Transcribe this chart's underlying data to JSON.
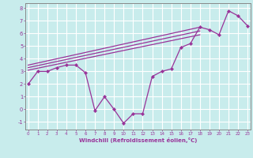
{
  "title": "",
  "xlabel": "Windchill (Refroidissement éolien,°C)",
  "ylabel": "",
  "bg_color": "#c8ecec",
  "grid_color": "#ffffff",
  "line_color": "#993399",
  "marker_color": "#993399",
  "axis_label_color": "#660066",
  "xlim": [
    -0.3,
    23.3
  ],
  "ylim": [
    -1.6,
    8.4
  ],
  "xticks": [
    0,
    1,
    2,
    3,
    4,
    5,
    6,
    7,
    8,
    9,
    10,
    11,
    12,
    13,
    14,
    15,
    16,
    17,
    18,
    19,
    20,
    21,
    22,
    23
  ],
  "yticks": [
    -1,
    0,
    1,
    2,
    3,
    4,
    5,
    6,
    7,
    8
  ],
  "series_main": [
    [
      0,
      2
    ],
    [
      1,
      3
    ],
    [
      2,
      3
    ],
    [
      3,
      3.3
    ],
    [
      4,
      3.5
    ],
    [
      5,
      3.5
    ],
    [
      6,
      2.9
    ],
    [
      7,
      -0.1
    ],
    [
      8,
      1.0
    ],
    [
      9,
      0.0
    ],
    [
      10,
      -1.1
    ],
    [
      11,
      -0.35
    ],
    [
      12,
      -0.35
    ],
    [
      13,
      2.6
    ],
    [
      14,
      3.0
    ],
    [
      15,
      3.2
    ],
    [
      16,
      4.9
    ],
    [
      17,
      5.2
    ],
    [
      18,
      6.5
    ],
    [
      19,
      6.3
    ],
    [
      20,
      5.9
    ],
    [
      21,
      7.8
    ],
    [
      22,
      7.4
    ],
    [
      23,
      6.6
    ]
  ],
  "line2_x": [
    0,
    18
  ],
  "line2_y": [
    3.5,
    6.5
  ],
  "line3_x": [
    0,
    18
  ],
  "line3_y": [
    3.3,
    6.2
  ],
  "line4_x": [
    0,
    18
  ],
  "line4_y": [
    3.1,
    5.9
  ]
}
